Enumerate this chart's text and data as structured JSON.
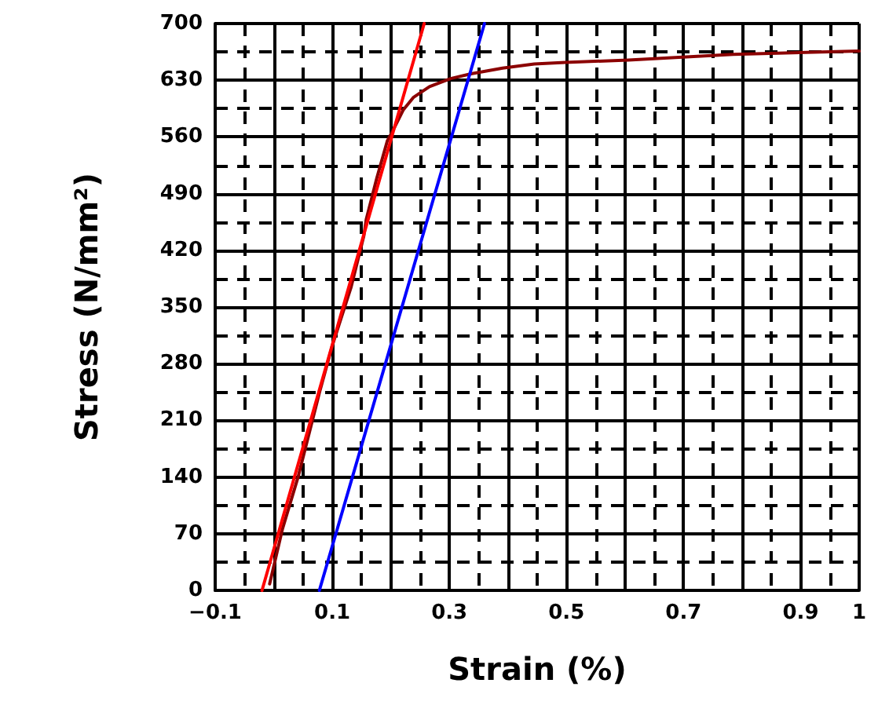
{
  "chart_data": {
    "type": "line",
    "xlabel": "Strain (%)",
    "ylabel": "Stress (N/mm²)",
    "xlim": [
      -0.1,
      1
    ],
    "ylim": [
      0,
      700
    ],
    "xticks": [
      -0.1,
      {
        "value": 0,
        "label": null
      },
      0.1,
      {
        "value": 0.2,
        "label": null
      },
      0.3,
      {
        "value": 0.4,
        "label": null
      },
      0.5,
      {
        "value": 0.6,
        "label": null
      },
      0.7,
      {
        "value": 0.8,
        "label": null
      },
      0.9,
      1
    ],
    "yticks": [
      0,
      70,
      140,
      210,
      280,
      350,
      420,
      490,
      560,
      630,
      700
    ],
    "grid": true,
    "marker": "none",
    "line_style": "solid",
    "series": [
      {
        "color": "#8b0000",
        "x": [
          -0.007,
          0.015,
          0.042,
          0.078,
          0.1,
          0.132,
          0.154,
          0.158,
          0.176,
          0.194,
          0.203,
          0.221,
          0.239,
          0.266,
          0.302,
          0.337,
          0.391,
          0.445,
          0.498,
          0.606,
          0.785,
          1
        ],
        "values": [
          8,
          76,
          141,
          244,
          302,
          374,
          438,
          458,
          509,
          555,
          567,
          593,
          609,
          622,
          632,
          638,
          645,
          650,
          652,
          655,
          662,
          666
        ]
      },
      {
        "color": "#ff0000",
        "x": [
          -0.02,
          0.257
        ],
        "values": [
          0,
          700
        ]
      },
      {
        "color": "#0000ff",
        "x": [
          0.078,
          0.36
        ],
        "values": [
          0,
          700
        ]
      }
    ]
  }
}
